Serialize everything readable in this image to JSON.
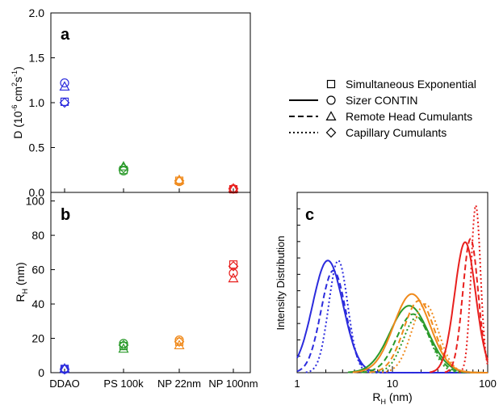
{
  "figure": {
    "panel_a_label": "a",
    "panel_b_label": "b",
    "panel_c_label": "c",
    "legend": [
      {
        "symbol": "square",
        "line": "none",
        "label": "Simultaneous Exponential"
      },
      {
        "symbol": "circle",
        "line": "solid",
        "label": "Sizer CONTIN"
      },
      {
        "symbol": "triangle",
        "line": "dashed",
        "label": "Remote Head Cumulants"
      },
      {
        "symbol": "diamond",
        "line": "dotted",
        "label": "Capillary Cumulants"
      }
    ],
    "colors": {
      "DDAO": "#2b2bdd",
      "PS 100k": "#2a9a2a",
      "NP 22nm": "#f08a1c",
      "NP 100nm": "#e8201e"
    }
  },
  "chart_data": [
    {
      "panel": "a",
      "type": "scatter",
      "categories": [
        "DDAO",
        "PS 100k",
        "NP 22nm",
        "NP 100nm"
      ],
      "ylabel_main": "D (10",
      "ylabel_exp1": "-6",
      "ylabel_mid": " cm",
      "ylabel_exp2": "2",
      "ylabel_s": "s",
      "ylabel_exp3": "-1",
      "ylabel_end": ")",
      "ylim": [
        0,
        2
      ],
      "yticks": [
        "0.0",
        "0.5",
        "1.0",
        "1.5",
        "2.0"
      ],
      "series": [
        {
          "method": "Simultaneous Exponential",
          "marker": "square",
          "values": [
            1.01,
            0.25,
            0.13,
            0.035
          ]
        },
        {
          "method": "Sizer CONTIN",
          "marker": "circle",
          "values": [
            1.22,
            0.24,
            0.12,
            0.04
          ]
        },
        {
          "method": "Remote Head Cumulants",
          "marker": "triangle",
          "values": [
            1.18,
            0.29,
            0.14,
            0.045
          ]
        },
        {
          "method": "Capillary Cumulants",
          "marker": "diamond",
          "values": [
            1.0,
            0.27,
            0.13,
            0.04
          ]
        }
      ]
    },
    {
      "panel": "b",
      "type": "scatter",
      "categories": [
        "DDAO",
        "PS 100k",
        "NP 22nm",
        "NP 100nm"
      ],
      "ylabel_main": "R",
      "ylabel_sub": "H",
      "ylabel_end": " (nm)",
      "ylim": [
        0,
        105
      ],
      "yticks": [
        "0",
        "20",
        "40",
        "60",
        "80",
        "100"
      ],
      "series": [
        {
          "method": "Simultaneous Exponential",
          "marker": "square",
          "values": [
            2.2,
            15.5,
            18,
            63
          ]
        },
        {
          "method": "Sizer CONTIN",
          "marker": "circle",
          "values": [
            2.0,
            17,
            19,
            58
          ]
        },
        {
          "method": "Remote Head Cumulants",
          "marker": "triangle",
          "values": [
            2.5,
            14,
            16,
            55
          ]
        },
        {
          "method": "Capillary Cumulants",
          "marker": "diamond",
          "values": [
            1.9,
            16,
            18,
            62
          ]
        }
      ]
    },
    {
      "panel": "c",
      "type": "line",
      "xscale": "log",
      "xlim": [
        1,
        100
      ],
      "xticks": [
        "1",
        "10",
        "100"
      ],
      "xlabel_main": "R",
      "xlabel_sub": "H",
      "xlabel_end": " (nm)",
      "ylabel": "Intensity Distribution",
      "series": [
        {
          "sample": "DDAO",
          "method": "Sizer CONTIN",
          "style": "solid",
          "peak_x": 2.1,
          "peak_y": 0.67,
          "sigma": 0.16
        },
        {
          "sample": "DDAO",
          "method": "Remote Head Cumulants",
          "style": "dashed",
          "peak_x": 2.4,
          "peak_y": 0.61,
          "sigma": 0.13
        },
        {
          "sample": "DDAO",
          "method": "Capillary Cumulants",
          "style": "dotted",
          "peak_x": 2.7,
          "peak_y": 0.67,
          "sigma": 0.1
        },
        {
          "sample": "PS 100k",
          "method": "Sizer CONTIN",
          "style": "solid",
          "peak_x": 15,
          "peak_y": 0.4,
          "sigma": 0.2
        },
        {
          "sample": "PS 100k",
          "method": "Remote Head Cumulants",
          "style": "dashed",
          "peak_x": 16.5,
          "peak_y": 0.35,
          "sigma": 0.17
        },
        {
          "sample": "PS 100k",
          "method": "Capillary Cumulants",
          "style": "dotted",
          "peak_x": 18,
          "peak_y": 0.33,
          "sigma": 0.14
        },
        {
          "sample": "NP 22nm",
          "method": "Sizer CONTIN",
          "style": "solid",
          "peak_x": 16,
          "peak_y": 0.47,
          "sigma": 0.19
        },
        {
          "sample": "NP 22nm",
          "method": "Remote Head Cumulants",
          "style": "dashed",
          "peak_x": 19,
          "peak_y": 0.43,
          "sigma": 0.16
        },
        {
          "sample": "NP 22nm",
          "method": "Capillary Cumulants",
          "style": "dotted",
          "peak_x": 22,
          "peak_y": 0.41,
          "sigma": 0.14
        },
        {
          "sample": "NP 100nm",
          "method": "Sizer CONTIN",
          "style": "solid",
          "peak_x": 58,
          "peak_y": 0.78,
          "sigma": 0.11
        },
        {
          "sample": "NP 100nm",
          "method": "Remote Head Cumulants",
          "style": "dashed",
          "peak_x": 66,
          "peak_y": 0.8,
          "sigma": 0.08
        },
        {
          "sample": "NP 100nm",
          "method": "Capillary Cumulants",
          "style": "dotted",
          "peak_x": 75,
          "peak_y": 1.0,
          "sigma": 0.05
        }
      ]
    }
  ]
}
